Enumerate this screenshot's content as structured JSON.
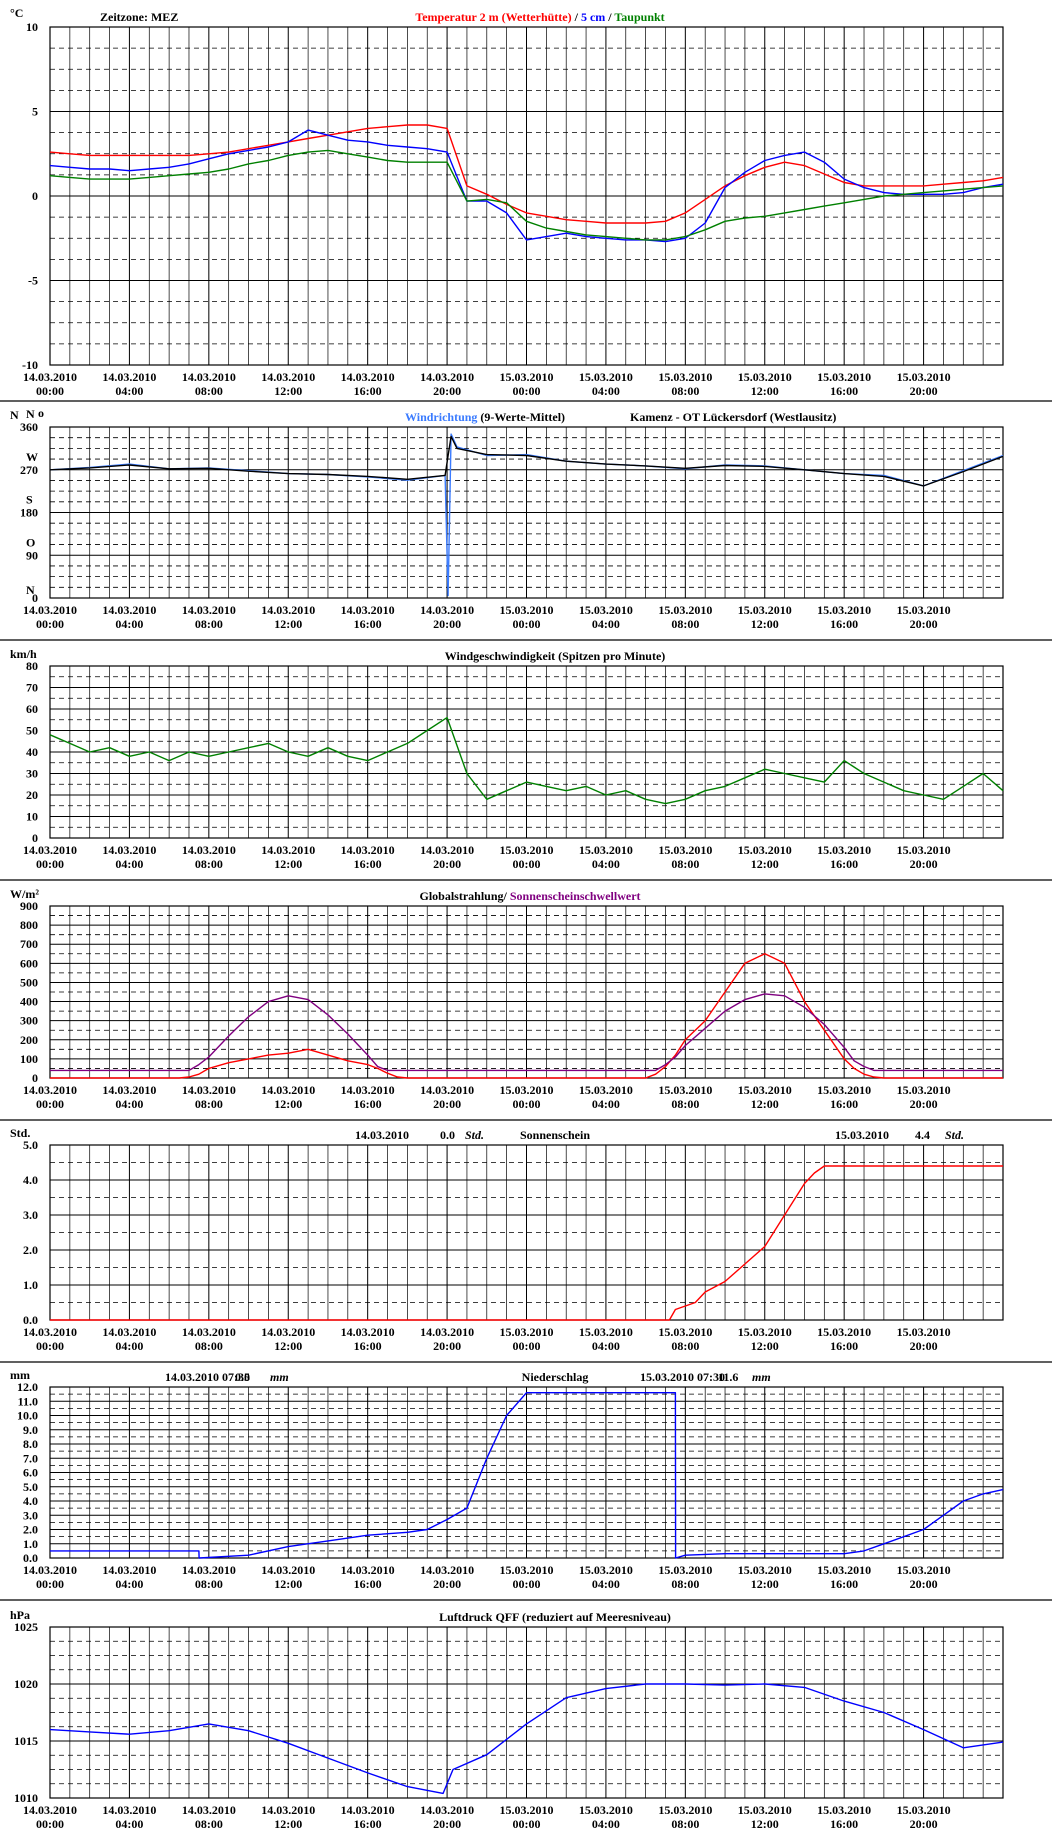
{
  "x_labels": [
    "14.03.2010\n00:00",
    "14.03.2010\n04:00",
    "14.03.2010\n08:00",
    "14.03.2010\n12:00",
    "14.03.2010\n16:00",
    "14.03.2010\n20:00",
    "15.03.2010\n00:00",
    "15.03.2010\n04:00",
    "15.03.2010\n08:00",
    "15.03.2010\n12:00",
    "15.03.2010\n16:00",
    "15.03.2010\n20:00"
  ],
  "chart_data": [
    {
      "type": "line",
      "unit": "°C",
      "timezone": "Zeitzone: MEZ",
      "title_parts": [
        {
          "text": "Temperatur 2 m (Wetterhütte)",
          "color": "#ff0000"
        },
        {
          "text": " / ",
          "color": "#000000"
        },
        {
          "text": "5 cm",
          "color": "#0000ff"
        },
        {
          "text": " / ",
          "color": "#000000"
        },
        {
          "text": "Taupunkt",
          "color": "#008000"
        }
      ],
      "ylim": [
        -10,
        10
      ],
      "y_ticks": [
        10,
        5,
        0,
        -5,
        -10
      ],
      "x_hours": [
        0,
        1,
        2,
        3,
        4,
        5,
        6,
        7,
        8,
        9,
        10,
        11,
        12,
        13,
        14,
        15,
        16,
        17,
        18,
        19,
        20,
        21,
        22,
        23,
        24,
        25,
        26,
        27,
        28,
        29,
        30,
        31,
        32,
        33,
        34,
        35,
        36,
        37,
        38,
        39,
        40,
        41,
        42,
        43,
        44,
        45,
        46,
        47,
        48
      ],
      "series": [
        {
          "color": "#ff0000",
          "values": [
            2.6,
            2.5,
            2.4,
            2.4,
            2.4,
            2.4,
            2.4,
            2.4,
            2.5,
            2.6,
            2.8,
            3.0,
            3.2,
            3.4,
            3.6,
            3.8,
            4.0,
            4.1,
            4.2,
            4.2,
            4.0,
            0.6,
            0.1,
            -0.5,
            -1.0,
            -1.2,
            -1.4,
            -1.5,
            -1.6,
            -1.6,
            -1.6,
            -1.5,
            -1.0,
            -0.2,
            0.6,
            1.2,
            1.7,
            2.0,
            1.8,
            1.3,
            0.8,
            0.6,
            0.6,
            0.6,
            0.6,
            0.7,
            0.8,
            0.9,
            1.1
          ]
        },
        {
          "color": "#0000ff",
          "values": [
            1.8,
            1.7,
            1.6,
            1.6,
            1.5,
            1.6,
            1.7,
            1.9,
            2.2,
            2.5,
            2.7,
            2.9,
            3.2,
            3.9,
            3.6,
            3.3,
            3.2,
            3.0,
            2.9,
            2.8,
            2.6,
            -0.3,
            -0.3,
            -1.0,
            -2.6,
            -2.4,
            -2.2,
            -2.4,
            -2.5,
            -2.6,
            -2.6,
            -2.7,
            -2.5,
            -1.6,
            0.5,
            1.4,
            2.1,
            2.4,
            2.6,
            2.0,
            1.0,
            0.5,
            0.2,
            0.1,
            0.1,
            0.1,
            0.2,
            0.5,
            0.7
          ]
        },
        {
          "color": "#008000",
          "values": [
            1.2,
            1.1,
            1.0,
            1.0,
            1.0,
            1.1,
            1.2,
            1.3,
            1.4,
            1.6,
            1.9,
            2.1,
            2.4,
            2.6,
            2.7,
            2.5,
            2.3,
            2.1,
            2.0,
            2.0,
            2.0,
            -0.3,
            -0.2,
            -0.4,
            -1.5,
            -1.9,
            -2.1,
            -2.3,
            -2.4,
            -2.5,
            -2.6,
            -2.6,
            -2.4,
            -2.0,
            -1.5,
            -1.3,
            -1.2,
            -1.0,
            -0.8,
            -0.6,
            -0.4,
            -0.2,
            0.0,
            0.1,
            0.2,
            0.3,
            0.4,
            0.5,
            0.6
          ]
        }
      ]
    },
    {
      "type": "line",
      "unit": "N",
      "unit_suffix": "o",
      "title_parts": [
        {
          "text": "Windrichtung",
          "color": "#3a7bff"
        },
        {
          "text": " (9-Werte-Mittel)",
          "color": "#000000"
        }
      ],
      "location": "Kamenz - OT Lückersdorf (Westlausitz)",
      "ylim": [
        0,
        360
      ],
      "y_ticks": [
        360,
        270,
        180,
        90,
        0
      ],
      "direction_labels": [
        {
          "value": 360,
          "label": "N"
        },
        {
          "value": 270,
          "label": "W"
        },
        {
          "value": 180,
          "label": "S"
        },
        {
          "value": 90,
          "label": "O"
        },
        {
          "value": 0,
          "label": "N"
        }
      ],
      "x_hours": [
        0,
        2,
        4,
        6,
        8,
        10,
        12,
        14,
        16,
        18,
        19.9,
        20.05,
        20.2,
        20.5,
        22,
        24,
        26,
        28,
        30,
        32,
        34,
        36,
        38,
        40,
        42,
        44,
        46,
        48
      ],
      "series": [
        {
          "color": "#3a7bff",
          "values": [
            270,
            275,
            282,
            272,
            274,
            268,
            262,
            260,
            255,
            248,
            258,
            5,
            345,
            318,
            300,
            302,
            288,
            282,
            278,
            272,
            280,
            278,
            270,
            262,
            258,
            236,
            268,
            300
          ]
        },
        {
          "color": "#000000",
          "values": [
            270,
            274,
            280,
            272,
            273,
            267,
            262,
            260,
            256,
            250,
            258,
            300,
            340,
            315,
            302,
            300,
            288,
            282,
            278,
            273,
            279,
            277,
            270,
            262,
            256,
            236,
            266,
            298
          ]
        }
      ]
    },
    {
      "type": "line",
      "unit": "km/h",
      "title": "Windgeschwindigkeit (Spitzen pro Minute)",
      "ylim": [
        0,
        80
      ],
      "y_ticks": [
        80,
        70,
        60,
        50,
        40,
        30,
        20,
        10,
        0
      ],
      "x_hours": [
        0,
        1,
        2,
        3,
        4,
        5,
        6,
        7,
        8,
        9,
        10,
        11,
        12,
        13,
        14,
        15,
        16,
        17,
        18,
        19,
        20,
        21,
        22,
        23,
        24,
        25,
        26,
        27,
        28,
        29,
        30,
        31,
        32,
        33,
        34,
        35,
        36,
        37,
        38,
        39,
        40,
        41,
        42,
        43,
        44,
        45,
        46,
        47,
        48
      ],
      "series": [
        {
          "color": "#008000",
          "values": [
            48,
            44,
            40,
            42,
            38,
            40,
            36,
            40,
            38,
            40,
            42,
            44,
            40,
            38,
            42,
            38,
            36,
            40,
            44,
            50,
            56,
            30,
            18,
            22,
            26,
            24,
            22,
            24,
            20,
            22,
            18,
            16,
            18,
            22,
            24,
            28,
            32,
            30,
            28,
            26,
            36,
            30,
            26,
            22,
            20,
            18,
            24,
            30,
            22
          ]
        }
      ]
    },
    {
      "type": "line",
      "unit": "W/m²",
      "title_parts": [
        {
          "text": "Globalstrahlung/ ",
          "color": "#000000"
        },
        {
          "text": "Sonnenscheinschwellwert",
          "color": "#800080"
        }
      ],
      "ylim": [
        0,
        900
      ],
      "y_ticks": [
        900,
        800,
        700,
        600,
        500,
        400,
        300,
        200,
        100,
        0
      ],
      "x_hours": [
        0,
        1,
        2,
        3,
        4,
        5,
        6,
        6.5,
        7,
        7.5,
        8,
        9,
        10,
        11,
        12,
        13,
        14,
        15,
        16,
        16.5,
        17,
        17.5,
        18,
        19,
        20,
        21,
        22,
        23,
        24,
        25,
        26,
        27,
        28,
        29,
        30,
        30.5,
        31,
        31.5,
        32,
        33,
        34,
        35,
        36,
        37,
        38,
        39,
        40,
        40.5,
        41,
        41.5,
        42,
        43,
        44,
        45,
        46,
        47,
        48
      ],
      "series": [
        {
          "color": "#ff0000",
          "values": [
            0,
            0,
            0,
            0,
            0,
            0,
            0,
            0,
            5,
            20,
            50,
            80,
            100,
            120,
            130,
            150,
            120,
            90,
            70,
            50,
            25,
            5,
            0,
            0,
            0,
            0,
            0,
            0,
            0,
            0,
            0,
            0,
            0,
            0,
            0,
            20,
            60,
            120,
            200,
            300,
            450,
            600,
            650,
            600,
            400,
            250,
            100,
            50,
            20,
            5,
            0,
            0,
            0,
            0,
            0,
            0,
            0
          ]
        },
        {
          "color": "#800080",
          "values": [
            40,
            40,
            40,
            40,
            40,
            40,
            40,
            40,
            40,
            70,
            110,
            220,
            320,
            400,
            430,
            410,
            330,
            230,
            120,
            60,
            40,
            40,
            40,
            40,
            40,
            40,
            40,
            40,
            40,
            40,
            40,
            40,
            40,
            40,
            40,
            40,
            70,
            110,
            170,
            260,
            350,
            410,
            440,
            430,
            370,
            280,
            160,
            90,
            60,
            40,
            40,
            40,
            40,
            40,
            40,
            40,
            40
          ]
        }
      ]
    },
    {
      "type": "line",
      "unit": "Std.",
      "title": "Sonnenschein",
      "summaries": [
        {
          "date": "14.03.2010",
          "value": "0.0",
          "unit": "Std."
        },
        {
          "date": "15.03.2010",
          "value": "4.4",
          "unit": "Std."
        }
      ],
      "ylim": [
        0,
        5
      ],
      "y_ticks": [
        "5.0",
        "4.0",
        "3.0",
        "2.0",
        "1.0",
        "0.0"
      ],
      "x_hours": [
        0,
        31.2,
        31.5,
        32.5,
        33,
        34,
        35,
        36,
        37,
        38,
        38.5,
        39,
        48
      ],
      "series": [
        {
          "color": "#ff0000",
          "values": [
            0,
            0,
            0.3,
            0.5,
            0.8,
            1.1,
            1.6,
            2.1,
            3.0,
            3.9,
            4.2,
            4.4,
            4.4
          ]
        }
      ]
    },
    {
      "type": "line",
      "unit": "mm",
      "title": "Niederschlag",
      "summaries": [
        {
          "date": "14.03.2010 07:30",
          "value": "0.5",
          "unit": "mm"
        },
        {
          "date": "15.03.2010 07:30",
          "value": "11.6",
          "unit": "mm"
        }
      ],
      "ylim": [
        0,
        12
      ],
      "y_ticks": [
        "12.0",
        "11.0",
        "10.0",
        "9.0",
        "8.0",
        "7.0",
        "6.0",
        "5.0",
        "4.0",
        "3.0",
        "2.0",
        "1.0",
        "0.0"
      ],
      "x_hours": [
        0,
        7.5,
        7.51,
        10,
        12,
        14,
        16,
        18,
        19,
        20,
        21,
        22,
        23,
        24,
        25,
        26,
        28,
        30,
        31.5,
        31.51,
        32,
        34,
        36,
        38,
        40,
        41,
        42,
        44,
        45,
        46,
        47,
        48
      ],
      "series": [
        {
          "color": "#0000ff",
          "values": [
            0.5,
            0.5,
            0,
            0.2,
            0.8,
            1.2,
            1.6,
            1.8,
            2.0,
            2.7,
            3.5,
            7.0,
            10.0,
            11.6,
            11.6,
            11.6,
            11.6,
            11.6,
            11.6,
            0,
            0.2,
            0.3,
            0.3,
            0.3,
            0.3,
            0.5,
            1.0,
            2.0,
            3.0,
            4.0,
            4.5,
            4.8
          ]
        }
      ]
    },
    {
      "type": "line",
      "unit": "hPa",
      "title": "Luftdruck QFF (reduziert auf Meeresniveau)",
      "ylim": [
        1010,
        1025
      ],
      "y_ticks": [
        1025,
        1020,
        1015,
        1010
      ],
      "x_hours": [
        0,
        2,
        4,
        6,
        8,
        10,
        12,
        14,
        16,
        18,
        19.8,
        20.3,
        22,
        24,
        26,
        28,
        30,
        32,
        34,
        36,
        38,
        40,
        42,
        44,
        46,
        48
      ],
      "series": [
        {
          "color": "#0000ff",
          "values": [
            1016.0,
            1015.8,
            1015.6,
            1015.9,
            1016.5,
            1015.9,
            1014.8,
            1013.5,
            1012.2,
            1011.0,
            1010.4,
            1012.5,
            1013.8,
            1016.5,
            1018.8,
            1019.6,
            1020.0,
            1020.0,
            1019.9,
            1020.0,
            1019.7,
            1018.5,
            1017.5,
            1016.0,
            1014.4,
            1014.9
          ]
        }
      ]
    }
  ]
}
